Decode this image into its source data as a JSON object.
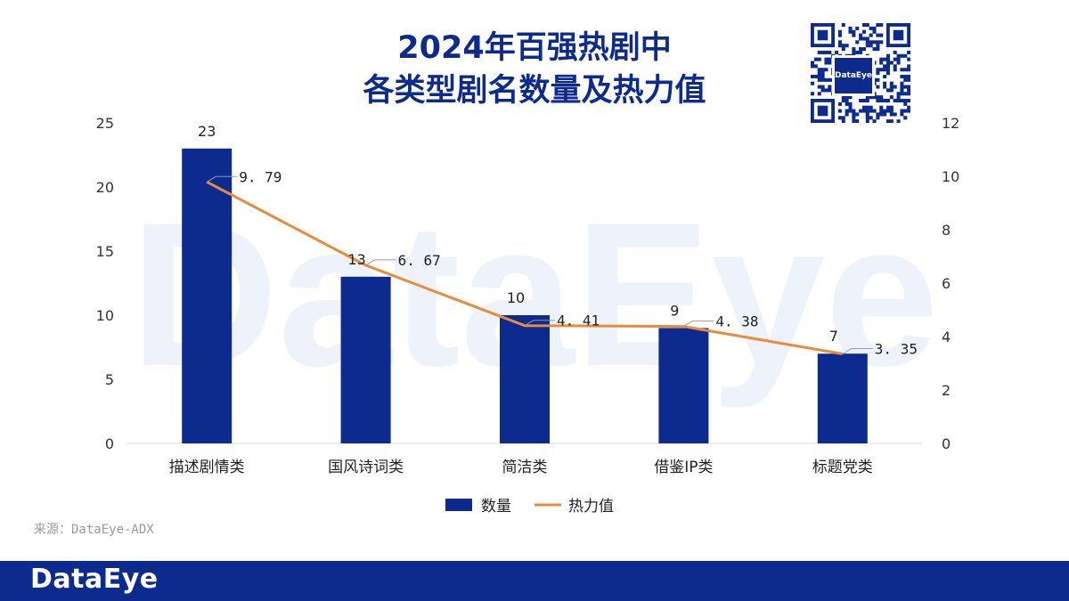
{
  "title_lines": [
    "2024年百强热剧中",
    "各类型剧名数量及热力值"
  ],
  "watermark": "DataEye",
  "qr_logo_text": "DataEye",
  "source": "来源：DataEye-ADX",
  "footer_logo": "DataEye",
  "colors": {
    "title": "#0d2a8f",
    "bar": "#0d2a8f",
    "line": "#ea8a3a",
    "footer": "#0d2a8f",
    "watermark": "#eef3fb"
  },
  "chart_data": {
    "type": "bar+line",
    "categories": [
      "描述剧情类",
      "国风诗词类",
      "简洁类",
      "借鉴IP类",
      "标题党类"
    ],
    "series": [
      {
        "name": "数量",
        "type": "bar",
        "axis": "left",
        "values": [
          23,
          13,
          10,
          9,
          7
        ],
        "labels": [
          "23",
          "13",
          "10",
          "9",
          "7"
        ]
      },
      {
        "name": "热力值",
        "type": "line",
        "axis": "right",
        "values": [
          9.79,
          6.67,
          4.41,
          4.38,
          3.35
        ],
        "labels": [
          "9. 79",
          "6. 67",
          "4. 41",
          "4. 38",
          "3. 35"
        ]
      }
    ],
    "y_left": {
      "min": 0,
      "max": 25,
      "ticks": [
        "0",
        "5",
        "10",
        "15",
        "20",
        "25"
      ]
    },
    "y_right": {
      "min": 0,
      "max": 12,
      "ticks": [
        "0",
        "2",
        "4",
        "6",
        "8",
        "10",
        "12"
      ]
    },
    "legend_position": "bottom",
    "grid": false
  }
}
